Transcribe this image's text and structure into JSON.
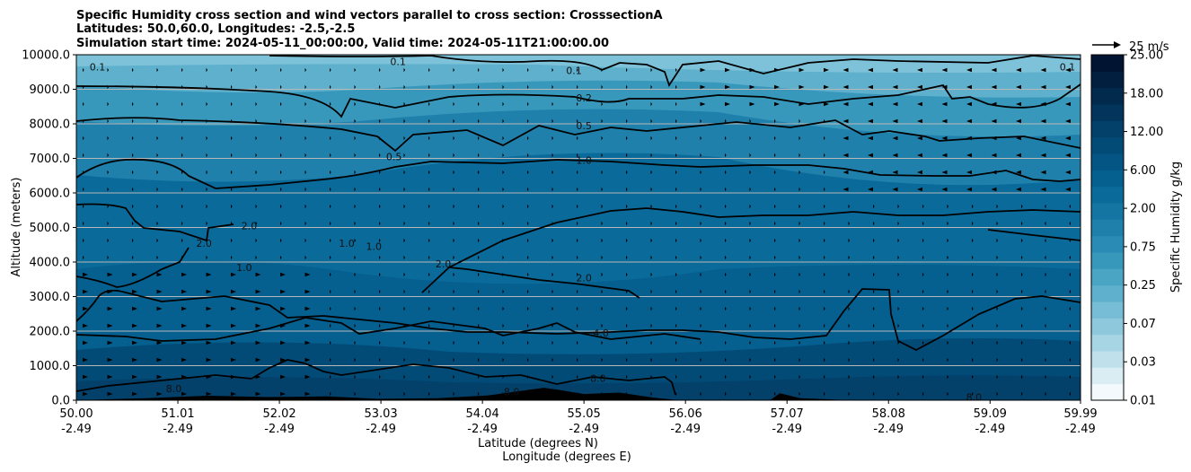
{
  "chart_data": {
    "type": "contour",
    "title_lines": [
      "Specific Humidity cross section and wind vectors parallel to cross section: CrosssectionA",
      "Latitudes: 50.0,60.0, Longitudes: -2.5,-2.5",
      "Simulation start time: 2024-05-11_00:00:00, Valid time: 2024-05-11T21:00:00.00"
    ],
    "xlabel_lines": [
      "Latitude (degrees N)",
      "Longitude (degrees E)"
    ],
    "ylabel": "Altitude (meters)",
    "xlim": [
      50.0,
      59.99
    ],
    "ylim": [
      0,
      10000
    ],
    "x_ticks": [
      {
        "lat": "50.00",
        "lon": "-2.49"
      },
      {
        "lat": "51.01",
        "lon": "-2.49"
      },
      {
        "lat": "52.02",
        "lon": "-2.49"
      },
      {
        "lat": "53.03",
        "lon": "-2.49"
      },
      {
        "lat": "54.04",
        "lon": "-2.49"
      },
      {
        "lat": "55.05",
        "lon": "-2.49"
      },
      {
        "lat": "56.06",
        "lon": "-2.49"
      },
      {
        "lat": "57.07",
        "lon": "-2.49"
      },
      {
        "lat": "58.08",
        "lon": "-2.49"
      },
      {
        "lat": "59.09",
        "lon": "-2.49"
      },
      {
        "lat": "59.99",
        "lon": "-2.49"
      }
    ],
    "y_ticks": [
      "0.0",
      "1000.0",
      "2000.0",
      "3000.0",
      "4000.0",
      "5000.0",
      "6000.0",
      "7000.0",
      "8000.0",
      "9000.0",
      "10000.0"
    ],
    "colorbar": {
      "label": "Specific Humidity g/kg",
      "ticks": [
        "0.01",
        "0.03",
        "0.07",
        "0.25",
        "0.75",
        "2.00",
        "6.00",
        "12.00",
        "18.00",
        "25.00"
      ],
      "colors": [
        "#f4fafc",
        "#d9edf3",
        "#c0e1ec",
        "#a8d5e4",
        "#8dc8dc",
        "#76bdd5",
        "#5eb0cc",
        "#4aa4c4",
        "#3898bc",
        "#2a8bb4",
        "#1f80ac",
        "#1475a3",
        "#0a6a9a",
        "#055f8f",
        "#045583",
        "#034b77",
        "#03406a",
        "#03355c",
        "#022a4d",
        "#021f3f",
        "#011432"
      ]
    },
    "wind_reference": {
      "label": "25 m/s",
      "speed": 25
    },
    "contour_levels": [
      "0.1",
      "0.2",
      "0.5",
      "1.0",
      "2.0",
      "4.0",
      "8.0"
    ],
    "contour_labels": [
      {
        "text": "0.1",
        "lat": 50.21,
        "alt": 9650
      },
      {
        "text": "0.1",
        "lat": 53.2,
        "alt": 9800
      },
      {
        "text": "0.1",
        "lat": 54.95,
        "alt": 9550
      },
      {
        "text": "0.1",
        "lat": 59.86,
        "alt": 9650
      },
      {
        "text": "0.2",
        "lat": 55.05,
        "alt": 8750
      },
      {
        "text": "0.5",
        "lat": 55.05,
        "alt": 7950
      },
      {
        "text": "0.5",
        "lat": 53.16,
        "alt": 7050
      },
      {
        "text": "1.0",
        "lat": 55.05,
        "alt": 6950
      },
      {
        "text": "2.0",
        "lat": 51.72,
        "alt": 5050
      },
      {
        "text": "2.0",
        "lat": 51.27,
        "alt": 4550
      },
      {
        "text": "1.0",
        "lat": 52.69,
        "alt": 4550
      },
      {
        "text": "1.0",
        "lat": 52.96,
        "alt": 4450
      },
      {
        "text": "1.0",
        "lat": 51.67,
        "alt": 3850
      },
      {
        "text": "2.0",
        "lat": 53.65,
        "alt": 3950
      },
      {
        "text": "2.0",
        "lat": 55.05,
        "alt": 3550
      },
      {
        "text": "4.0",
        "lat": 55.22,
        "alt": 1950
      },
      {
        "text": "8.0",
        "lat": 55.19,
        "alt": 630
      },
      {
        "text": "8.0",
        "lat": 50.97,
        "alt": 340
      },
      {
        "text": "8.0",
        "lat": 54.33,
        "alt": 250
      },
      {
        "text": "8.0",
        "lat": 58.93,
        "alt": 90
      }
    ],
    "terrain_peaks": [
      {
        "lat": 50.0,
        "alt": 0
      },
      {
        "lat": 50.7,
        "alt": 60
      },
      {
        "lat": 51.3,
        "alt": 130
      },
      {
        "lat": 51.9,
        "alt": 90
      },
      {
        "lat": 52.5,
        "alt": 110
      },
      {
        "lat": 53.0,
        "alt": 40
      },
      {
        "lat": 53.6,
        "alt": 60
      },
      {
        "lat": 54.1,
        "alt": 140
      },
      {
        "lat": 54.65,
        "alt": 360
      },
      {
        "lat": 54.8,
        "alt": 300
      },
      {
        "lat": 55.05,
        "alt": 180
      },
      {
        "lat": 55.4,
        "alt": 220
      },
      {
        "lat": 55.75,
        "alt": 70
      },
      {
        "lat": 56.0,
        "alt": 0
      },
      {
        "lat": 56.9,
        "alt": 0
      },
      {
        "lat": 57.0,
        "alt": 200
      },
      {
        "lat": 57.2,
        "alt": 60
      },
      {
        "lat": 57.7,
        "alt": 0
      },
      {
        "lat": 59.99,
        "alt": 0
      }
    ]
  }
}
